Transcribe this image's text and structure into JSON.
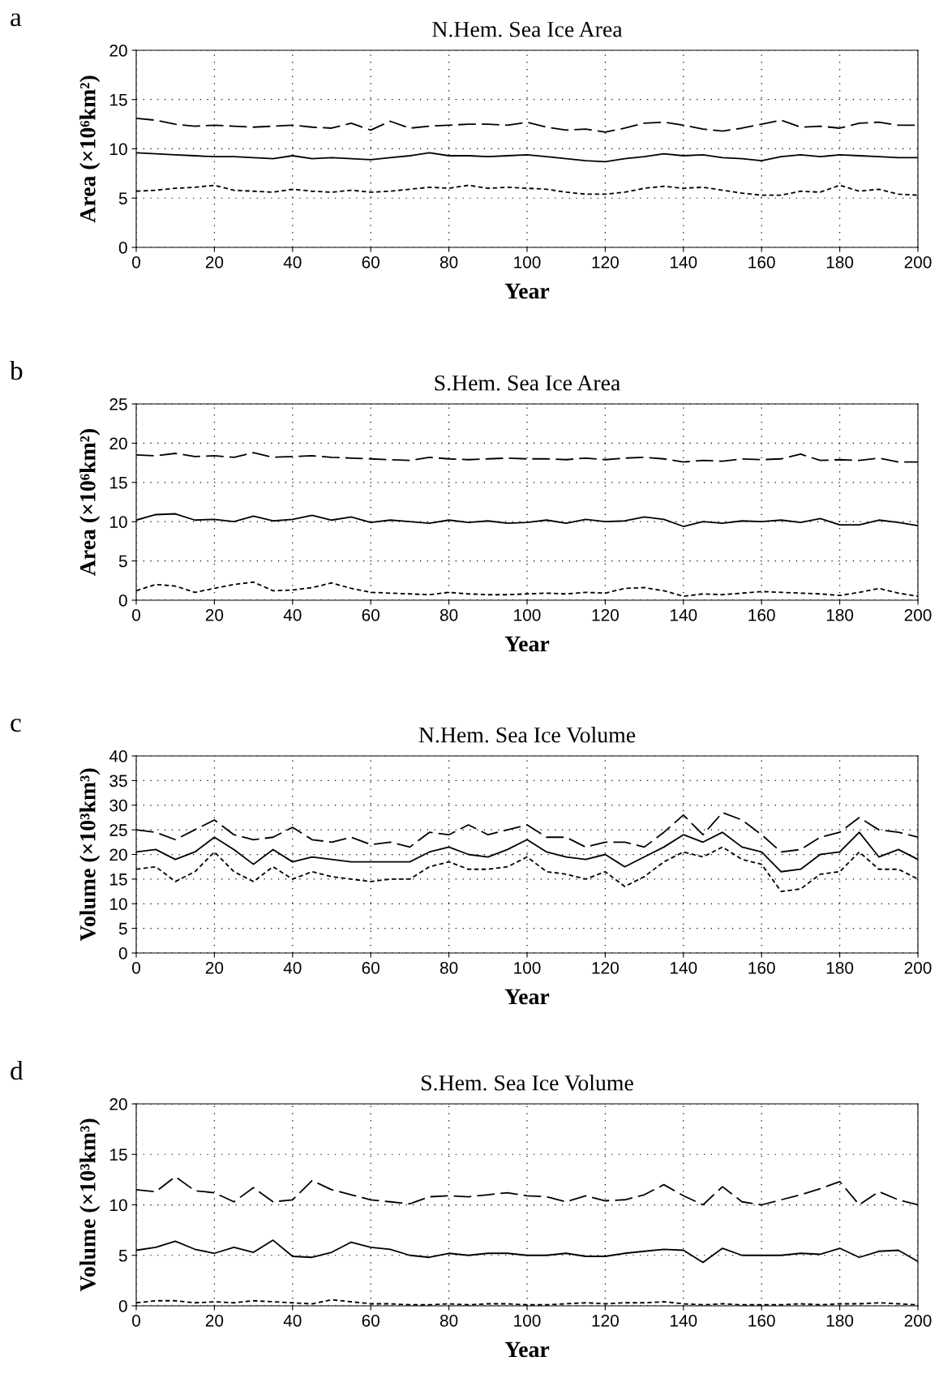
{
  "chart_data": [
    {
      "type": "line",
      "title": "N.Hem. Sea Ice Area",
      "xlabel": "Year",
      "ylabel": "Area (×10⁶km²)",
      "annotations": [
        "a"
      ],
      "grid": true,
      "xlim": [
        0,
        200
      ],
      "xticks": [
        0,
        20,
        40,
        60,
        80,
        100,
        120,
        140,
        160,
        180,
        200
      ],
      "ylim": [
        0,
        20
      ],
      "yticks": [
        0,
        5,
        10,
        15,
        20
      ],
      "x": [
        0,
        5,
        10,
        15,
        20,
        25,
        30,
        35,
        40,
        45,
        50,
        55,
        60,
        65,
        70,
        75,
        80,
        85,
        90,
        95,
        100,
        105,
        110,
        115,
        120,
        125,
        130,
        135,
        140,
        145,
        150,
        155,
        160,
        165,
        170,
        175,
        180,
        185,
        190,
        195,
        200
      ],
      "series": [
        {
          "color": "#000000",
          "line_style": "dashed",
          "values": [
            13.1,
            12.9,
            12.5,
            12.3,
            12.4,
            12.3,
            12.2,
            12.3,
            12.4,
            12.2,
            12.1,
            12.6,
            11.9,
            12.8,
            12.1,
            12.3,
            12.4,
            12.5,
            12.5,
            12.4,
            12.7,
            12.2,
            11.9,
            12.0,
            11.7,
            12.1,
            12.6,
            12.7,
            12.4,
            12.0,
            11.8,
            12.1,
            12.5,
            12.9,
            12.2,
            12.3,
            12.1,
            12.6,
            12.7,
            12.4,
            12.4
          ]
        },
        {
          "color": "#000000",
          "line_style": "solid",
          "values": [
            9.6,
            9.5,
            9.4,
            9.3,
            9.2,
            9.2,
            9.1,
            9.0,
            9.3,
            9.0,
            9.1,
            9.0,
            8.9,
            9.1,
            9.3,
            9.6,
            9.3,
            9.3,
            9.2,
            9.3,
            9.4,
            9.2,
            9.0,
            8.8,
            8.7,
            9.0,
            9.2,
            9.5,
            9.3,
            9.4,
            9.1,
            9.0,
            8.8,
            9.2,
            9.4,
            9.2,
            9.4,
            9.3,
            9.2,
            9.1,
            9.1
          ]
        },
        {
          "color": "#000000",
          "line_style": "dotted",
          "values": [
            5.7,
            5.8,
            6.0,
            6.1,
            6.3,
            5.8,
            5.7,
            5.6,
            5.9,
            5.7,
            5.6,
            5.8,
            5.6,
            5.7,
            5.9,
            6.1,
            6.0,
            6.3,
            6.0,
            6.1,
            6.0,
            5.9,
            5.6,
            5.4,
            5.4,
            5.6,
            6.0,
            6.2,
            6.0,
            6.1,
            5.8,
            5.5,
            5.3,
            5.3,
            5.7,
            5.6,
            6.3,
            5.7,
            5.9,
            5.4,
            5.3
          ]
        }
      ]
    },
    {
      "type": "line",
      "title": "S.Hem. Sea Ice Area",
      "xlabel": "Year",
      "ylabel": "Area (×10⁶km²)",
      "annotations": [
        "b"
      ],
      "grid": true,
      "xlim": [
        0,
        200
      ],
      "xticks": [
        0,
        20,
        40,
        60,
        80,
        100,
        120,
        140,
        160,
        180,
        200
      ],
      "ylim": [
        0,
        25
      ],
      "yticks": [
        0,
        5,
        10,
        15,
        20,
        25
      ],
      "x": [
        0,
        5,
        10,
        15,
        20,
        25,
        30,
        35,
        40,
        45,
        50,
        55,
        60,
        65,
        70,
        75,
        80,
        85,
        90,
        95,
        100,
        105,
        110,
        115,
        120,
        125,
        130,
        135,
        140,
        145,
        150,
        155,
        160,
        165,
        170,
        175,
        180,
        185,
        190,
        195,
        200
      ],
      "series": [
        {
          "color": "#000000",
          "line_style": "dashed",
          "values": [
            18.5,
            18.4,
            18.7,
            18.3,
            18.4,
            18.2,
            18.8,
            18.2,
            18.3,
            18.4,
            18.2,
            18.1,
            18.0,
            17.9,
            17.8,
            18.2,
            18.0,
            17.9,
            18.0,
            18.1,
            18.0,
            18.0,
            17.9,
            18.1,
            17.9,
            18.1,
            18.2,
            18.0,
            17.6,
            17.8,
            17.7,
            18.0,
            17.9,
            18.0,
            18.6,
            17.8,
            17.9,
            17.8,
            18.1,
            17.6,
            17.6
          ]
        },
        {
          "color": "#000000",
          "line_style": "solid",
          "values": [
            10.2,
            10.9,
            11.0,
            10.2,
            10.3,
            10.0,
            10.7,
            10.1,
            10.3,
            10.8,
            10.2,
            10.6,
            9.9,
            10.2,
            10.0,
            9.8,
            10.2,
            9.9,
            10.1,
            9.8,
            9.9,
            10.2,
            9.8,
            10.3,
            10.0,
            10.1,
            10.6,
            10.3,
            9.4,
            10.0,
            9.8,
            10.1,
            10.0,
            10.2,
            9.9,
            10.4,
            9.6,
            9.6,
            10.2,
            9.9,
            9.5
          ]
        },
        {
          "color": "#000000",
          "line_style": "dotted",
          "values": [
            1.2,
            2.0,
            1.8,
            1.0,
            1.5,
            2.0,
            2.3,
            1.2,
            1.3,
            1.6,
            2.2,
            1.5,
            1.0,
            0.9,
            0.8,
            0.7,
            1.0,
            0.8,
            0.7,
            0.7,
            0.8,
            0.9,
            0.8,
            1.0,
            0.9,
            1.5,
            1.6,
            1.2,
            0.5,
            0.8,
            0.7,
            0.9,
            1.1,
            1.0,
            0.9,
            0.8,
            0.6,
            1.0,
            1.5,
            0.9,
            0.5
          ]
        }
      ]
    },
    {
      "type": "line",
      "title": "N.Hem. Sea Ice Volume",
      "xlabel": "Year",
      "ylabel": "Volume (×10³km³)",
      "annotations": [
        "c"
      ],
      "grid": true,
      "xlim": [
        0,
        200
      ],
      "xticks": [
        0,
        20,
        40,
        60,
        80,
        100,
        120,
        140,
        160,
        180,
        200
      ],
      "ylim": [
        0,
        40
      ],
      "yticks": [
        0,
        5,
        10,
        15,
        20,
        25,
        30,
        35,
        40
      ],
      "x": [
        0,
        5,
        10,
        15,
        20,
        25,
        30,
        35,
        40,
        45,
        50,
        55,
        60,
        65,
        70,
        75,
        80,
        85,
        90,
        95,
        100,
        105,
        110,
        115,
        120,
        125,
        130,
        135,
        140,
        145,
        150,
        155,
        160,
        165,
        170,
        175,
        180,
        185,
        190,
        195,
        200
      ],
      "series": [
        {
          "color": "#000000",
          "line_style": "dashed",
          "values": [
            25.0,
            24.5,
            23.0,
            25.0,
            27.0,
            24.0,
            23.0,
            23.5,
            25.5,
            23.0,
            22.5,
            23.5,
            22.0,
            22.5,
            21.5,
            24.5,
            24.0,
            26.0,
            24.0,
            25.0,
            26.0,
            23.5,
            23.5,
            21.5,
            22.5,
            22.5,
            21.5,
            24.5,
            28.0,
            24.0,
            28.5,
            27.0,
            24.0,
            20.5,
            21.0,
            23.5,
            24.5,
            27.5,
            25.0,
            24.5,
            23.5
          ]
        },
        {
          "color": "#000000",
          "line_style": "solid",
          "values": [
            20.5,
            21.0,
            19.0,
            20.5,
            23.5,
            21.0,
            18.0,
            21.0,
            18.5,
            19.5,
            19.0,
            18.5,
            18.5,
            18.5,
            18.5,
            20.5,
            21.5,
            20.0,
            19.5,
            21.0,
            23.0,
            20.5,
            19.5,
            19.0,
            20.0,
            17.5,
            19.5,
            21.5,
            24.0,
            22.5,
            24.5,
            21.5,
            20.5,
            16.5,
            17.0,
            20.0,
            20.5,
            24.5,
            19.5,
            21.0,
            19.0
          ]
        },
        {
          "color": "#000000",
          "line_style": "dotted",
          "values": [
            17.0,
            17.5,
            14.5,
            16.5,
            20.5,
            16.5,
            14.5,
            17.5,
            15.0,
            16.5,
            15.5,
            15.0,
            14.5,
            15.0,
            15.0,
            17.5,
            18.5,
            17.0,
            17.0,
            17.5,
            19.5,
            16.5,
            16.0,
            15.0,
            16.5,
            13.5,
            15.5,
            18.5,
            20.5,
            19.5,
            21.5,
            19.0,
            18.0,
            12.5,
            13.0,
            16.0,
            16.5,
            20.5,
            17.0,
            17.0,
            15.0
          ]
        }
      ]
    },
    {
      "type": "line",
      "title": "S.Hem. Sea Ice Volume",
      "xlabel": "Year",
      "ylabel": "Volume (×10³km³)",
      "annotations": [
        "d"
      ],
      "grid": true,
      "xlim": [
        0,
        200
      ],
      "xticks": [
        0,
        20,
        40,
        60,
        80,
        100,
        120,
        140,
        160,
        180,
        200
      ],
      "ylim": [
        0,
        20
      ],
      "yticks": [
        0,
        5,
        10,
        15,
        20
      ],
      "x": [
        0,
        5,
        10,
        15,
        20,
        25,
        30,
        35,
        40,
        45,
        50,
        55,
        60,
        65,
        70,
        75,
        80,
        85,
        90,
        95,
        100,
        105,
        110,
        115,
        120,
        125,
        130,
        135,
        140,
        145,
        150,
        155,
        160,
        165,
        170,
        175,
        180,
        185,
        190,
        195,
        200
      ],
      "series": [
        {
          "color": "#000000",
          "line_style": "dashed",
          "values": [
            11.5,
            11.3,
            12.8,
            11.4,
            11.2,
            10.3,
            11.7,
            10.3,
            10.5,
            12.4,
            11.5,
            11.0,
            10.5,
            10.3,
            10.1,
            10.8,
            10.9,
            10.8,
            11.0,
            11.2,
            10.9,
            10.8,
            10.3,
            10.9,
            10.4,
            10.5,
            11.0,
            12.0,
            10.9,
            10.0,
            11.8,
            10.3,
            10.0,
            10.5,
            11.0,
            11.6,
            12.3,
            10.0,
            11.3,
            10.5,
            10.0
          ]
        },
        {
          "color": "#000000",
          "line_style": "solid",
          "values": [
            5.5,
            5.8,
            6.4,
            5.6,
            5.2,
            5.8,
            5.3,
            6.5,
            4.9,
            4.8,
            5.3,
            6.3,
            5.8,
            5.6,
            5.0,
            4.8,
            5.2,
            5.0,
            5.2,
            5.2,
            5.0,
            5.0,
            5.2,
            4.9,
            4.9,
            5.2,
            5.4,
            5.6,
            5.5,
            4.3,
            5.7,
            5.0,
            5.0,
            5.0,
            5.2,
            5.1,
            5.7,
            4.8,
            5.4,
            5.5,
            4.4
          ]
        },
        {
          "color": "#000000",
          "line_style": "dotted",
          "values": [
            0.3,
            0.5,
            0.5,
            0.3,
            0.4,
            0.3,
            0.5,
            0.4,
            0.3,
            0.2,
            0.6,
            0.4,
            0.2,
            0.2,
            0.1,
            0.1,
            0.2,
            0.1,
            0.2,
            0.2,
            0.1,
            0.1,
            0.2,
            0.3,
            0.2,
            0.3,
            0.3,
            0.4,
            0.2,
            0.1,
            0.2,
            0.1,
            0.1,
            0.1,
            0.2,
            0.1,
            0.2,
            0.2,
            0.3,
            0.2,
            0.1
          ]
        }
      ]
    }
  ]
}
